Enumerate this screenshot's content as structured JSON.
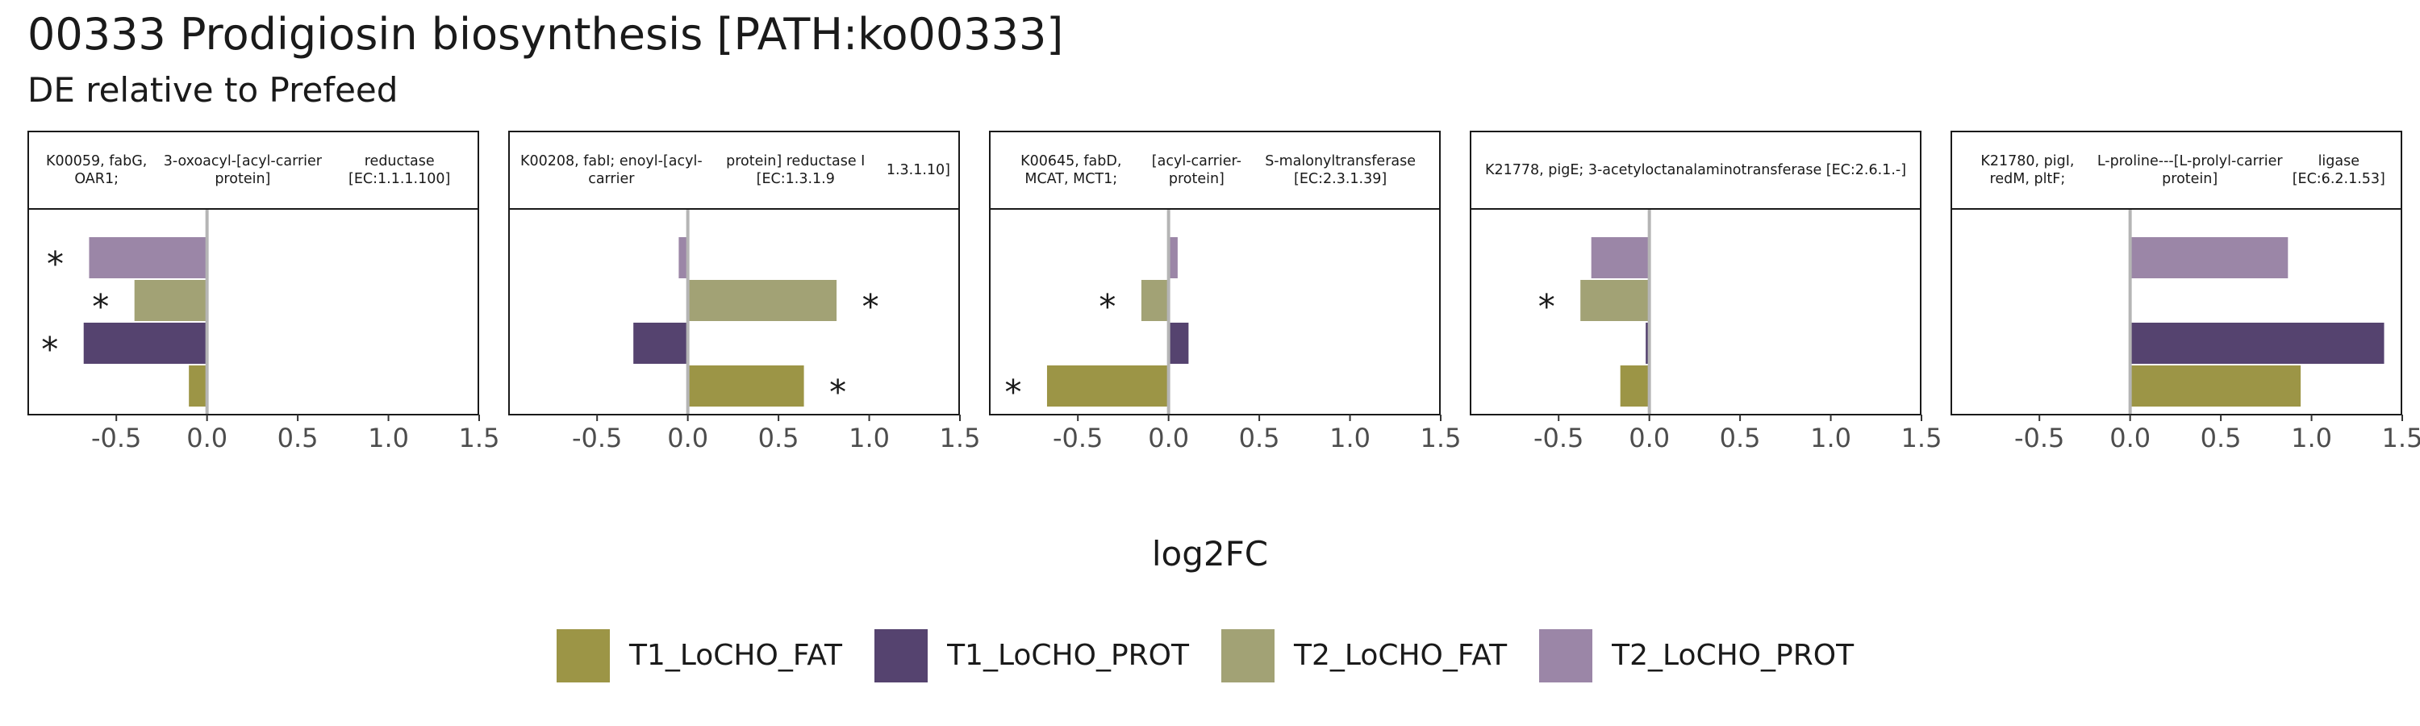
{
  "title": "00333 Prodigiosin biosynthesis [PATH:ko00333]",
  "subtitle": "DE relative to Prefeed",
  "colors": {
    "T1_LoCHO_FAT": "#9c9546",
    "T1_LoCHO_PROT": "#55436f",
    "T2_LoCHO_FAT": "#a2a275",
    "T2_LoCHO_PROT": "#9b86a7"
  },
  "chart_data": {
    "type": "bar",
    "orientation": "horizontal",
    "xlabel": "log2FC",
    "xlim": [
      -0.99,
      1.5
    ],
    "xticks": [
      "-0.5",
      "0.0",
      "0.5",
      "1.0",
      "1.5"
    ],
    "xtick_values": [
      -0.5,
      0.0,
      0.5,
      1.0,
      1.5
    ],
    "grid": false,
    "legend_position": "bottom",
    "series_order": [
      "T2_LoCHO_PROT",
      "T2_LoCHO_FAT",
      "T1_LoCHO_PROT",
      "T1_LoCHO_FAT"
    ],
    "legend": [
      "T1_LoCHO_FAT",
      "T1_LoCHO_PROT",
      "T2_LoCHO_FAT",
      "T2_LoCHO_PROT"
    ],
    "significance_mark": "*",
    "panels": [
      {
        "strip": [
          "K00059, fabG, OAR1;",
          "3-oxoacyl-[acyl-carrier protein]",
          "reductase [EC:1.1.1.100]"
        ],
        "bars": [
          {
            "series": "T2_LoCHO_PROT",
            "value": -0.65,
            "sig": true
          },
          {
            "series": "T2_LoCHO_FAT",
            "value": -0.4,
            "sig": true
          },
          {
            "series": "T1_LoCHO_PROT",
            "value": -0.68,
            "sig": true
          },
          {
            "series": "T1_LoCHO_FAT",
            "value": -0.1,
            "sig": false
          }
        ]
      },
      {
        "strip": [
          "K00208, fabI; enoyl-[acyl-carrier",
          "protein] reductase I [EC:1.3.1.9",
          "1.3.1.10]"
        ],
        "bars": [
          {
            "series": "T2_LoCHO_PROT",
            "value": -0.05,
            "sig": false
          },
          {
            "series": "T2_LoCHO_FAT",
            "value": 0.82,
            "sig": true
          },
          {
            "series": "T1_LoCHO_PROT",
            "value": -0.3,
            "sig": false
          },
          {
            "series": "T1_LoCHO_FAT",
            "value": 0.64,
            "sig": true
          }
        ]
      },
      {
        "strip": [
          "K00645, fabD, MCAT, MCT1;",
          "[acyl-carrier-protein]",
          "S-malonyltransferase [EC:2.3.1.39]"
        ],
        "bars": [
          {
            "series": "T2_LoCHO_PROT",
            "value": 0.05,
            "sig": false
          },
          {
            "series": "T2_LoCHO_FAT",
            "value": -0.15,
            "sig": true
          },
          {
            "series": "T1_LoCHO_PROT",
            "value": 0.11,
            "sig": false
          },
          {
            "series": "T1_LoCHO_FAT",
            "value": -0.67,
            "sig": true
          }
        ]
      },
      {
        "strip": [
          "K21778, pigE; 3-acetyloctanal",
          "aminotransferase [EC:2.6.1.-]"
        ],
        "bars": [
          {
            "series": "T2_LoCHO_PROT",
            "value": -0.32,
            "sig": false
          },
          {
            "series": "T2_LoCHO_FAT",
            "value": -0.38,
            "sig": true
          },
          {
            "series": "T1_LoCHO_PROT",
            "value": -0.02,
            "sig": false
          },
          {
            "series": "T1_LoCHO_FAT",
            "value": -0.16,
            "sig": false
          }
        ]
      },
      {
        "strip": [
          "K21780, pigI, redM, pltF;",
          "L-proline---[L-prolyl-carrier protein]",
          "ligase [EC:6.2.1.53]"
        ],
        "bars": [
          {
            "series": "T2_LoCHO_PROT",
            "value": 0.87,
            "sig": false
          },
          {
            "series": "T2_LoCHO_FAT",
            "value": 0.0,
            "sig": false
          },
          {
            "series": "T1_LoCHO_PROT",
            "value": 1.4,
            "sig": false
          },
          {
            "series": "T1_LoCHO_FAT",
            "value": 0.94,
            "sig": false
          }
        ]
      }
    ]
  }
}
